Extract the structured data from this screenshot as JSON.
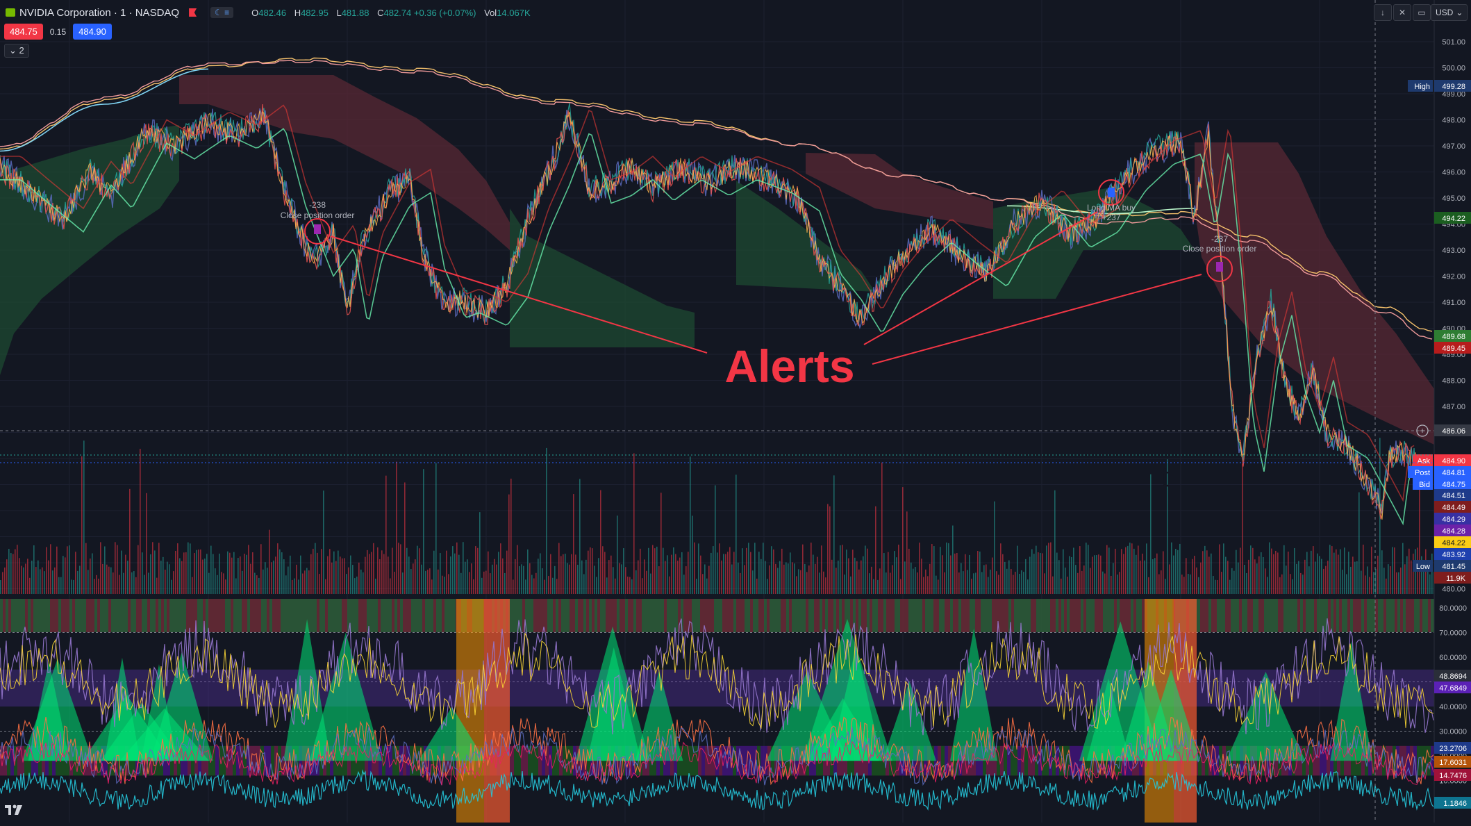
{
  "header": {
    "title": "NVIDIA Corporation · 1 · NASDAQ",
    "ohlc": [
      {
        "k": "O",
        "v": "482.46"
      },
      {
        "k": "H",
        "v": "482.95"
      },
      {
        "k": "L",
        "v": "481.88"
      },
      {
        "k": "C",
        "v": "482.74 +0.36 (+0.07%)"
      },
      {
        "k": "Vol",
        "v": "14.067K"
      }
    ],
    "bid_price": "484.75",
    "spread": "0.15",
    "ask_price": "484.90",
    "collapse_label": "2",
    "currency": "USD",
    "colors": {
      "up": "#26a69a",
      "down": "#f23645",
      "accent": "#2962ff"
    }
  },
  "price_axis": {
    "ticks": [
      "501.00",
      "500.00",
      "499.00",
      "498.00",
      "497.00",
      "496.00",
      "495.00",
      "494.00",
      "493.00",
      "492.00",
      "491.00",
      "490.00",
      "489.00",
      "488.00",
      "487.00",
      "486.00",
      "485.00",
      "484.00",
      "483.00",
      "482.00",
      "481.00",
      "480.00"
    ],
    "badges": [
      {
        "label": "High",
        "value": "499.28",
        "color": "#1e3a6e"
      },
      {
        "label": "",
        "value": "494.22",
        "color": "#1b5e20"
      },
      {
        "label": "",
        "value": "489.68",
        "color": "#2e7d32"
      },
      {
        "label": "",
        "value": "489.45",
        "color": "#b71c1c"
      },
      {
        "label": "",
        "value": "486.06",
        "color": "#363a45"
      },
      {
        "label": "Ask",
        "value": "484.90",
        "color": "#f23645"
      },
      {
        "label": "Post",
        "value": "484.81",
        "color": "#2962ff"
      },
      {
        "label": "Bid",
        "value": "484.75",
        "color": "#2962ff"
      },
      {
        "label": "",
        "value": "484.51",
        "color": "#1e3a8a"
      },
      {
        "label": "",
        "value": "484.49",
        "color": "#7f1d1d"
      },
      {
        "label": "",
        "value": "484.29",
        "color": "#3730a3"
      },
      {
        "label": "",
        "value": "484.28",
        "color": "#6b21a8"
      },
      {
        "label": "",
        "value": "484.22",
        "color": "#facc15"
      },
      {
        "label": "",
        "value": "483.92",
        "color": "#1e40af"
      },
      {
        "label": "Low",
        "value": "481.45",
        "color": "#1e3a6e"
      },
      {
        "label": "",
        "value": "11.9K",
        "color": "#7f1d1d"
      }
    ]
  },
  "osc_axis": {
    "ticks": [
      "80.0000",
      "70.0000",
      "60.0000",
      "50.0000",
      "40.0000",
      "30.0000",
      "20.0000",
      "10.0000"
    ],
    "badges": [
      {
        "value": "48.8694",
        "color": "#2a2e39"
      },
      {
        "value": "47.6849",
        "color": "#5b21b6"
      },
      {
        "value": "23.2706",
        "color": "#1e3a8a"
      },
      {
        "value": "17.6031",
        "color": "#b45309"
      },
      {
        "value": "14.7476",
        "color": "#9f1239"
      },
      {
        "value": "1.1846",
        "color": "#0e7490"
      }
    ]
  },
  "annotations": {
    "main_label": "Alerts",
    "close_order_1": {
      "qty": "-238",
      "text": "Close position order"
    },
    "close_order_2": {
      "qty": "-237",
      "text": "Close position order"
    },
    "buy_order": {
      "text": "Long MA buy",
      "qty": "+237"
    },
    "stray_char": "t"
  }
}
